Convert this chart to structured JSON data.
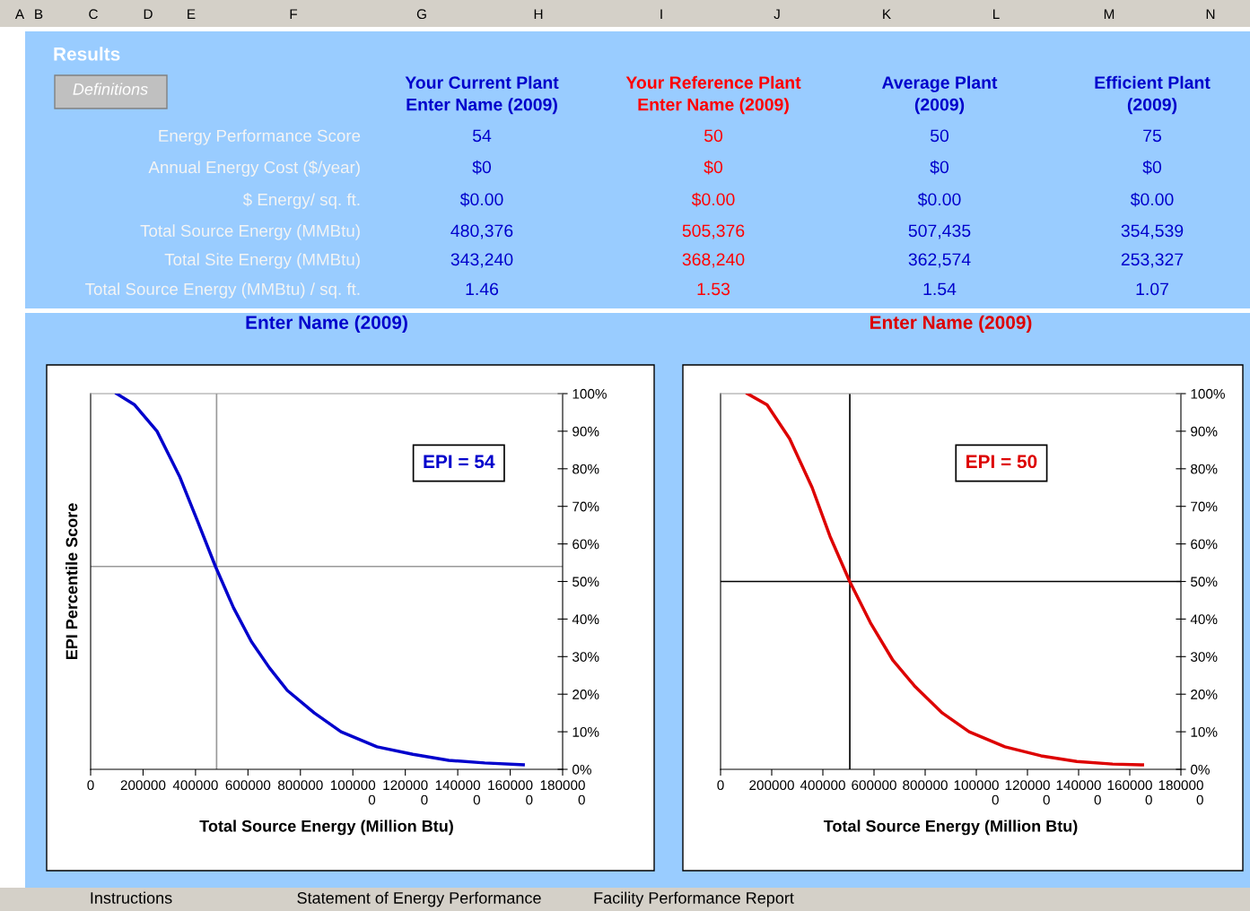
{
  "chart_data": [
    {
      "type": "other",
      "title": "Results",
      "annotations": [
        "Definitions"
      ],
      "categories": [
        "Your Current Plant\nEnter Name (2009)",
        "Your Reference Plant\nEnter Name (2009)",
        "Average Plant\n(2009)",
        "Efficient Plant\n(2009)"
      ],
      "y_categories": [
        "Energy Performance Score",
        "Annual Energy Cost ($/year)",
        "$ Energy/ sq. ft.",
        "Total Source Energy (MMBtu)",
        "Total Site Energy (MMBtu)",
        "Total Source Energy (MMBtu) / sq. ft."
      ],
      "cell_labels": [
        [
          "54",
          "50",
          "50",
          "75"
        ],
        [
          "$0",
          "$0",
          "$0",
          "$0"
        ],
        [
          "$0.00",
          "$0.00",
          "$0.00",
          "$0.00"
        ],
        [
          "480,376",
          "505,376",
          "507,435",
          "354,539"
        ],
        [
          "343,240",
          "368,240",
          "362,574",
          "253,327"
        ],
        [
          "1.46",
          "1.53",
          "1.54",
          "1.07"
        ]
      ],
      "colors": [
        "#0000cc",
        "#ff0000",
        "#0000cc",
        "#0000cc"
      ]
    },
    {
      "type": "line",
      "title": "Enter Name (2009)",
      "xlabel": "Total Source Energy (Million Btu)",
      "ylabel": "EPI Percentile Score",
      "x": [
        99000,
        168000,
        253000,
        339000,
        408000,
        476000,
        545000,
        613000,
        682000,
        750000,
        853000,
        955000,
        1092000,
        1229000,
        1366000,
        1503000,
        1650000
      ],
      "series": [
        {
          "color": "#0000cc",
          "values": [
            100,
            97,
            90,
            78,
            66,
            54,
            43,
            34,
            27,
            21,
            15,
            10,
            6,
            4,
            2.4,
            1.7,
            1.2
          ]
        }
      ],
      "xlim": [
        0,
        1800000
      ],
      "xticks": [
        0,
        200000,
        400000,
        600000,
        800000,
        {
          "value": 1000000,
          "label": "100000\n0"
        },
        {
          "value": 1200000,
          "label": "120000\n0"
        },
        {
          "value": 1400000,
          "label": "140000\n0"
        },
        {
          "value": 1600000,
          "label": "160000\n0"
        },
        {
          "value": 1800000,
          "label": "180000\n0"
        }
      ],
      "ylim": [
        0,
        100
      ],
      "yticks": [
        {
          "value": 0,
          "label": "0%"
        },
        {
          "value": 10,
          "label": "10%"
        },
        {
          "value": 20,
          "label": "20%"
        },
        {
          "value": 30,
          "label": "30%"
        },
        {
          "value": 40,
          "label": "40%"
        },
        {
          "value": 50,
          "label": "50%"
        },
        {
          "value": 60,
          "label": "60%"
        },
        {
          "value": 70,
          "label": "70%"
        },
        {
          "value": 80,
          "label": "80%"
        },
        {
          "value": 90,
          "label": "90%"
        },
        {
          "value": 100,
          "label": "100%"
        }
      ],
      "ref_lines": [
        {
          "axis": "x",
          "value": 480376,
          "color": "#999999"
        },
        {
          "axis": "y",
          "value": 54,
          "color": "#999999"
        }
      ],
      "annotations": [
        "EPI = 54"
      ],
      "marker": "none",
      "line_style": "solid"
    },
    {
      "type": "line",
      "title": "Enter Name (2009)",
      "xlabel": "Total Source Energy (Million Btu)",
      "x": [
        105000,
        182000,
        270000,
        358000,
        428000,
        505000,
        586000,
        674000,
        761000,
        867000,
        972000,
        1112000,
        1253000,
        1393000,
        1533000,
        1650000
      ],
      "series": [
        {
          "color": "#dd0000",
          "values": [
            100,
            97,
            88,
            75,
            62,
            50,
            39,
            29,
            22,
            15,
            10,
            6,
            3.6,
            2.1,
            1.4,
            1.2
          ]
        }
      ],
      "xlim": [
        0,
        1800000
      ],
      "xticks": [
        0,
        200000,
        400000,
        600000,
        800000,
        {
          "value": 1000000,
          "label": "100000\n0"
        },
        {
          "value": 1200000,
          "label": "120000\n0"
        },
        {
          "value": 1400000,
          "label": "140000\n0"
        },
        {
          "value": 1600000,
          "label": "160000\n0"
        },
        {
          "value": 1800000,
          "label": "180000\n0"
        }
      ],
      "ylim": [
        0,
        100
      ],
      "yticks": [
        {
          "value": 0,
          "label": "0%"
        },
        {
          "value": 10,
          "label": "10%"
        },
        {
          "value": 20,
          "label": "20%"
        },
        {
          "value": 30,
          "label": "30%"
        },
        {
          "value": 40,
          "label": "40%"
        },
        {
          "value": 50,
          "label": "50%"
        },
        {
          "value": 60,
          "label": "60%"
        },
        {
          "value": 70,
          "label": "70%"
        },
        {
          "value": 80,
          "label": "80%"
        },
        {
          "value": 90,
          "label": "90%"
        },
        {
          "value": 100,
          "label": "100%"
        }
      ],
      "ref_lines": [
        {
          "axis": "x",
          "value": 505376,
          "color": "#000000"
        },
        {
          "axis": "y",
          "value": 50,
          "color": "#000000"
        }
      ],
      "annotations": [
        "EPI = 50"
      ],
      "marker": "none",
      "line_style": "solid"
    },
    {
      "type": "other",
      "categories": [
        "A",
        "B",
        "C",
        "D",
        "E",
        "F",
        "G",
        "H",
        "I",
        "J",
        "K",
        "L",
        "M",
        "N"
      ],
      "annotations": [
        "Instructions",
        "Statement of Energy Performance",
        "Facility Performance Report"
      ]
    }
  ]
}
